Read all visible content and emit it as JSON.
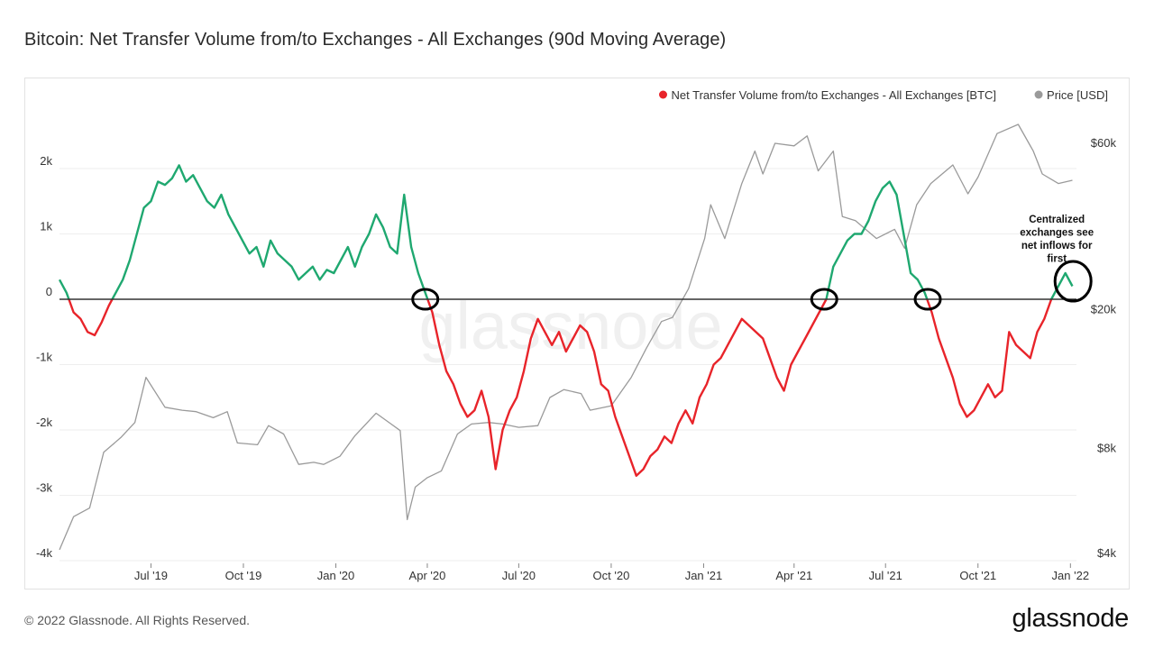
{
  "header": {
    "title": "Bitcoin: Net Transfer Volume from/to Exchanges - All Exchanges (90d Moving Average)"
  },
  "footer": {
    "copyright": "© 2022 Glassnode. All Rights Reserved.",
    "brand": "glassnode"
  },
  "watermark": "glassnode",
  "colors": {
    "positive": "#1fa870",
    "negative": "#e8242a",
    "price": "#9a9a9a",
    "zero_line": "#333333",
    "grid": "#eeeeee"
  },
  "chart_data": {
    "type": "line",
    "x_ticks": [
      "Jul '19",
      "Oct '19",
      "Jan '20",
      "Apr '20",
      "Jul '20",
      "Oct '20",
      "Jan '21",
      "Apr '21",
      "Jul '21",
      "Oct '21",
      "Jan '22"
    ],
    "x_range": [
      "2019-04-01",
      "2022-01-07"
    ],
    "y_left": {
      "ticks": [
        "2k",
        "1k",
        "0",
        "-1k",
        "-2k",
        "-3k",
        "-4k"
      ],
      "range": [
        -4000,
        3000
      ]
    },
    "y_right": {
      "ticks": [
        "$60k",
        "$20k",
        "$8k",
        "$4k"
      ],
      "scale": "log",
      "range": [
        3600,
        85000
      ]
    },
    "legend": [
      {
        "label": "Net Transfer Volume from/to Exchanges - All Exchanges [BTC]",
        "color": "#e8242a"
      },
      {
        "label": "Price [USD]",
        "color": "#9a9a9a"
      }
    ],
    "legend_position": "top-right",
    "series": [
      {
        "name": "Net Transfer Volume from/to Exchanges - All Exchanges [BTC]",
        "axis": "left",
        "points": [
          [
            "2019-04-01",
            300
          ],
          [
            "2019-04-08",
            100
          ],
          [
            "2019-04-15",
            -200
          ],
          [
            "2019-04-22",
            -300
          ],
          [
            "2019-04-29",
            -500
          ],
          [
            "2019-05-06",
            -550
          ],
          [
            "2019-05-13",
            -350
          ],
          [
            "2019-05-20",
            -100
          ],
          [
            "2019-05-27",
            100
          ],
          [
            "2019-06-03",
            300
          ],
          [
            "2019-06-10",
            600
          ],
          [
            "2019-06-17",
            1000
          ],
          [
            "2019-06-24",
            1400
          ],
          [
            "2019-07-01",
            1500
          ],
          [
            "2019-07-08",
            1800
          ],
          [
            "2019-07-15",
            1750
          ],
          [
            "2019-07-22",
            1850
          ],
          [
            "2019-07-29",
            2050
          ],
          [
            "2019-08-05",
            1800
          ],
          [
            "2019-08-12",
            1900
          ],
          [
            "2019-08-19",
            1700
          ],
          [
            "2019-08-26",
            1500
          ],
          [
            "2019-09-02",
            1400
          ],
          [
            "2019-09-09",
            1600
          ],
          [
            "2019-09-16",
            1300
          ],
          [
            "2019-09-23",
            1100
          ],
          [
            "2019-09-30",
            900
          ],
          [
            "2019-10-07",
            700
          ],
          [
            "2019-10-14",
            800
          ],
          [
            "2019-10-21",
            500
          ],
          [
            "2019-10-28",
            900
          ],
          [
            "2019-11-04",
            700
          ],
          [
            "2019-11-11",
            600
          ],
          [
            "2019-11-18",
            500
          ],
          [
            "2019-11-25",
            300
          ],
          [
            "2019-12-02",
            400
          ],
          [
            "2019-12-09",
            500
          ],
          [
            "2019-12-16",
            300
          ],
          [
            "2019-12-23",
            450
          ],
          [
            "2019-12-30",
            400
          ],
          [
            "2020-01-06",
            600
          ],
          [
            "2020-01-13",
            800
          ],
          [
            "2020-01-20",
            500
          ],
          [
            "2020-01-27",
            800
          ],
          [
            "2020-02-03",
            1000
          ],
          [
            "2020-02-10",
            1300
          ],
          [
            "2020-02-17",
            1100
          ],
          [
            "2020-02-24",
            800
          ],
          [
            "2020-03-02",
            700
          ],
          [
            "2020-03-09",
            1600
          ],
          [
            "2020-03-16",
            800
          ],
          [
            "2020-03-23",
            400
          ],
          [
            "2020-03-30",
            100
          ],
          [
            "2020-04-06",
            -200
          ],
          [
            "2020-04-13",
            -700
          ],
          [
            "2020-04-20",
            -1100
          ],
          [
            "2020-04-27",
            -1300
          ],
          [
            "2020-05-04",
            -1600
          ],
          [
            "2020-05-11",
            -1800
          ],
          [
            "2020-05-18",
            -1700
          ],
          [
            "2020-05-25",
            -1400
          ],
          [
            "2020-06-01",
            -1800
          ],
          [
            "2020-06-08",
            -2600
          ],
          [
            "2020-06-15",
            -2000
          ],
          [
            "2020-06-22",
            -1700
          ],
          [
            "2020-06-29",
            -1500
          ],
          [
            "2020-07-06",
            -1100
          ],
          [
            "2020-07-13",
            -600
          ],
          [
            "2020-07-20",
            -300
          ],
          [
            "2020-07-27",
            -500
          ],
          [
            "2020-08-03",
            -700
          ],
          [
            "2020-08-10",
            -500
          ],
          [
            "2020-08-17",
            -800
          ],
          [
            "2020-08-24",
            -600
          ],
          [
            "2020-08-31",
            -400
          ],
          [
            "2020-09-07",
            -500
          ],
          [
            "2020-09-14",
            -800
          ],
          [
            "2020-09-21",
            -1300
          ],
          [
            "2020-09-28",
            -1400
          ],
          [
            "2020-10-05",
            -1800
          ],
          [
            "2020-10-12",
            -2100
          ],
          [
            "2020-10-19",
            -2400
          ],
          [
            "2020-10-26",
            -2700
          ],
          [
            "2020-11-02",
            -2600
          ],
          [
            "2020-11-09",
            -2400
          ],
          [
            "2020-11-16",
            -2300
          ],
          [
            "2020-11-23",
            -2100
          ],
          [
            "2020-11-30",
            -2200
          ],
          [
            "2020-12-07",
            -1900
          ],
          [
            "2020-12-14",
            -1700
          ],
          [
            "2020-12-21",
            -1900
          ],
          [
            "2020-12-28",
            -1500
          ],
          [
            "2021-01-04",
            -1300
          ],
          [
            "2021-01-11",
            -1000
          ],
          [
            "2021-01-18",
            -900
          ],
          [
            "2021-01-25",
            -700
          ],
          [
            "2021-02-01",
            -500
          ],
          [
            "2021-02-08",
            -300
          ],
          [
            "2021-02-15",
            -400
          ],
          [
            "2021-02-22",
            -500
          ],
          [
            "2021-03-01",
            -600
          ],
          [
            "2021-03-08",
            -900
          ],
          [
            "2021-03-15",
            -1200
          ],
          [
            "2021-03-22",
            -1400
          ],
          [
            "2021-03-29",
            -1000
          ],
          [
            "2021-04-05",
            -800
          ],
          [
            "2021-04-12",
            -600
          ],
          [
            "2021-04-19",
            -400
          ],
          [
            "2021-04-26",
            -200
          ],
          [
            "2021-05-03",
            0
          ],
          [
            "2021-05-10",
            500
          ],
          [
            "2021-05-17",
            700
          ],
          [
            "2021-05-24",
            900
          ],
          [
            "2021-05-31",
            1000
          ],
          [
            "2021-06-07",
            1000
          ],
          [
            "2021-06-14",
            1200
          ],
          [
            "2021-06-21",
            1500
          ],
          [
            "2021-06-28",
            1700
          ],
          [
            "2021-07-05",
            1800
          ],
          [
            "2021-07-12",
            1600
          ],
          [
            "2021-07-19",
            1000
          ],
          [
            "2021-07-26",
            400
          ],
          [
            "2021-08-02",
            300
          ],
          [
            "2021-08-09",
            100
          ],
          [
            "2021-08-16",
            -200
          ],
          [
            "2021-08-23",
            -600
          ],
          [
            "2021-08-30",
            -900
          ],
          [
            "2021-09-06",
            -1200
          ],
          [
            "2021-09-13",
            -1600
          ],
          [
            "2021-09-20",
            -1800
          ],
          [
            "2021-09-27",
            -1700
          ],
          [
            "2021-10-04",
            -1500
          ],
          [
            "2021-10-11",
            -1300
          ],
          [
            "2021-10-18",
            -1500
          ],
          [
            "2021-10-25",
            -1400
          ],
          [
            "2021-11-01",
            -500
          ],
          [
            "2021-11-08",
            -700
          ],
          [
            "2021-11-15",
            -800
          ],
          [
            "2021-11-22",
            -900
          ],
          [
            "2021-11-29",
            -500
          ],
          [
            "2021-12-06",
            -300
          ],
          [
            "2021-12-13",
            0
          ],
          [
            "2021-12-20",
            200
          ],
          [
            "2021-12-27",
            400
          ],
          [
            "2022-01-03",
            200
          ]
        ]
      },
      {
        "name": "Price [USD]",
        "axis": "right",
        "points": [
          [
            "2019-04-01",
            4100
          ],
          [
            "2019-04-15",
            5100
          ],
          [
            "2019-05-01",
            5400
          ],
          [
            "2019-05-15",
            7800
          ],
          [
            "2019-06-01",
            8600
          ],
          [
            "2019-06-15",
            9500
          ],
          [
            "2019-06-26",
            12800
          ],
          [
            "2019-07-15",
            10500
          ],
          [
            "2019-08-01",
            10300
          ],
          [
            "2019-08-15",
            10200
          ],
          [
            "2019-09-01",
            9800
          ],
          [
            "2019-09-15",
            10200
          ],
          [
            "2019-09-25",
            8300
          ],
          [
            "2019-10-15",
            8200
          ],
          [
            "2019-10-26",
            9300
          ],
          [
            "2019-11-10",
            8800
          ],
          [
            "2019-11-25",
            7200
          ],
          [
            "2019-12-10",
            7300
          ],
          [
            "2019-12-20",
            7200
          ],
          [
            "2020-01-05",
            7600
          ],
          [
            "2020-01-20",
            8700
          ],
          [
            "2020-02-10",
            10100
          ],
          [
            "2020-02-25",
            9400
          ],
          [
            "2020-03-05",
            9000
          ],
          [
            "2020-03-12",
            5000
          ],
          [
            "2020-03-20",
            6200
          ],
          [
            "2020-04-01",
            6600
          ],
          [
            "2020-04-15",
            6900
          ],
          [
            "2020-05-01",
            8800
          ],
          [
            "2020-05-15",
            9400
          ],
          [
            "2020-06-01",
            9500
          ],
          [
            "2020-06-15",
            9400
          ],
          [
            "2020-07-01",
            9200
          ],
          [
            "2020-07-20",
            9300
          ],
          [
            "2020-08-01",
            11200
          ],
          [
            "2020-08-15",
            11800
          ],
          [
            "2020-09-01",
            11500
          ],
          [
            "2020-09-10",
            10300
          ],
          [
            "2020-10-01",
            10600
          ],
          [
            "2020-10-21",
            12800
          ],
          [
            "2020-11-05",
            15500
          ],
          [
            "2020-11-20",
            18500
          ],
          [
            "2020-12-01",
            19000
          ],
          [
            "2020-12-17",
            23000
          ],
          [
            "2021-01-02",
            32000
          ],
          [
            "2021-01-08",
            40000
          ],
          [
            "2021-01-22",
            32000
          ],
          [
            "2021-02-08",
            46000
          ],
          [
            "2021-02-21",
            57000
          ],
          [
            "2021-03-01",
            49000
          ],
          [
            "2021-03-13",
            60000
          ],
          [
            "2021-04-01",
            59000
          ],
          [
            "2021-04-14",
            63000
          ],
          [
            "2021-04-25",
            50000
          ],
          [
            "2021-05-10",
            57000
          ],
          [
            "2021-05-19",
            37000
          ],
          [
            "2021-06-01",
            36000
          ],
          [
            "2021-06-22",
            32000
          ],
          [
            "2021-07-10",
            34000
          ],
          [
            "2021-07-20",
            30000
          ],
          [
            "2021-08-01",
            40000
          ],
          [
            "2021-08-15",
            46000
          ],
          [
            "2021-09-06",
            52000
          ],
          [
            "2021-09-21",
            43000
          ],
          [
            "2021-10-01",
            48000
          ],
          [
            "2021-10-20",
            64000
          ],
          [
            "2021-11-10",
            68000
          ],
          [
            "2021-11-25",
            57000
          ],
          [
            "2021-12-04",
            49000
          ],
          [
            "2021-12-20",
            46000
          ],
          [
            "2022-01-03",
            47000
          ]
        ]
      }
    ],
    "annotations": [
      {
        "text": "Centralized exchanges see net inflows for first",
        "date": "2021-12-31"
      }
    ],
    "circled_crossings": [
      "2020-03-30",
      "2021-05-01",
      "2021-08-12",
      "2021-12-31"
    ]
  }
}
